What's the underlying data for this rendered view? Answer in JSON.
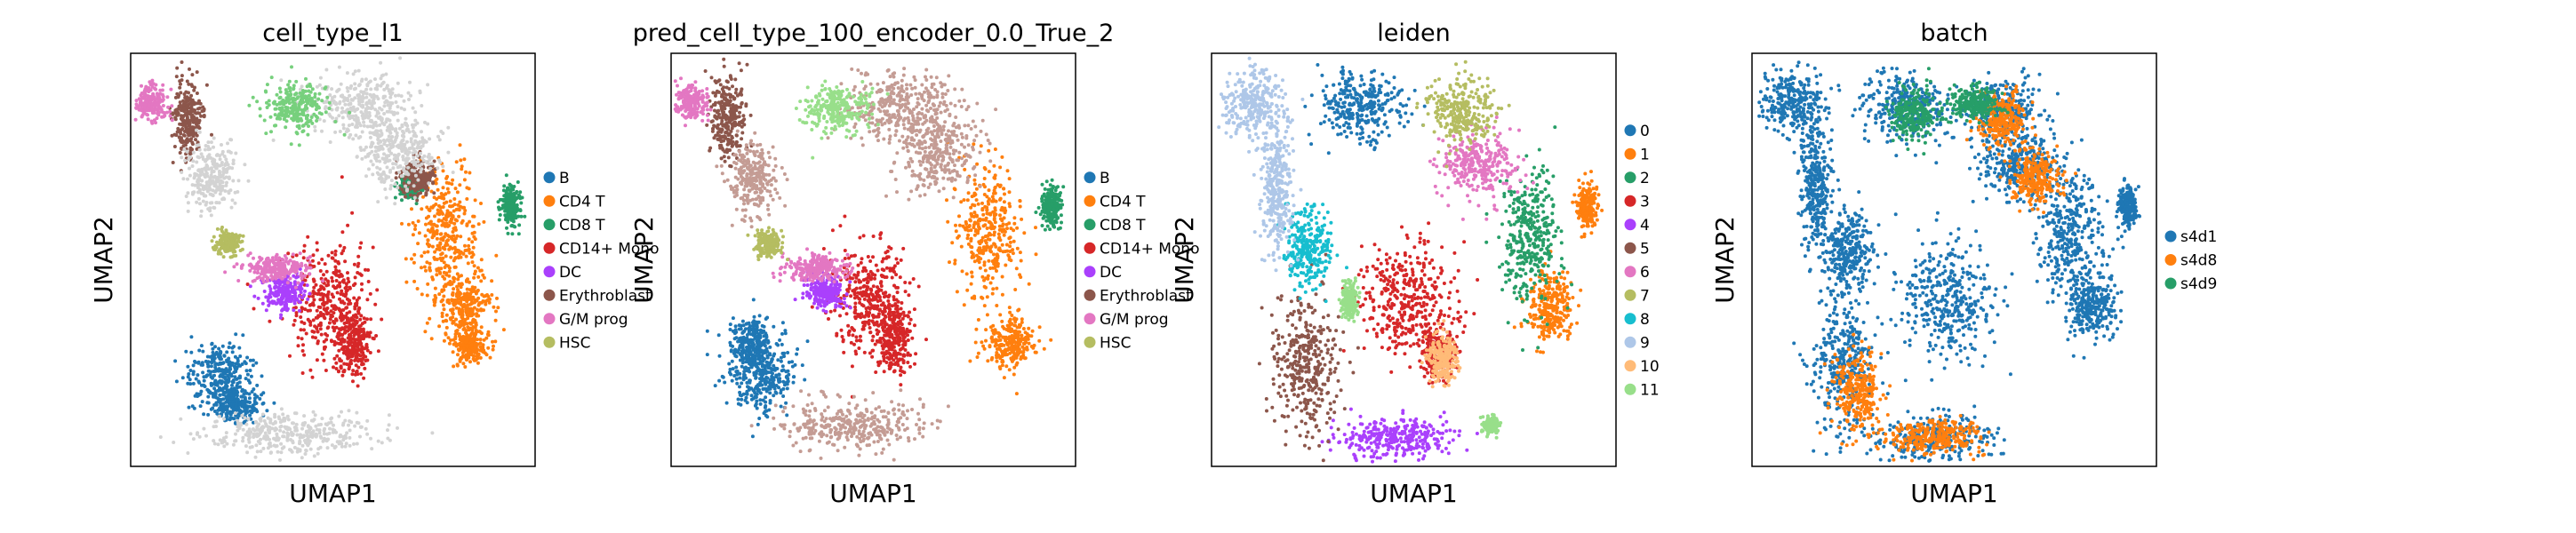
{
  "figure": {
    "panels": [
      {
        "title": "cell_type_l1",
        "xlabel": "UMAP1",
        "ylabel": "UMAP2",
        "legend": [
          {
            "label": "B",
            "color": "#1f77b4"
          },
          {
            "label": "CD4 T",
            "color": "#ff7f0e"
          },
          {
            "label": "CD8 T",
            "color": "#279e68"
          },
          {
            "label": "CD14+ Mono",
            "color": "#d62728"
          },
          {
            "label": "DC",
            "color": "#aa40fc"
          },
          {
            "label": "Erythroblast",
            "color": "#8c564b"
          },
          {
            "label": "G/M prog",
            "color": "#e377c2"
          },
          {
            "label": "HSC",
            "color": "#b5bd61"
          }
        ]
      },
      {
        "title": "pred_cell_type_100_encoder_0.0_True_2",
        "xlabel": "UMAP1",
        "ylabel": "UMAP2",
        "legend": [
          {
            "label": "B",
            "color": "#1f77b4"
          },
          {
            "label": "CD4 T",
            "color": "#ff7f0e"
          },
          {
            "label": "CD8 T",
            "color": "#279e68"
          },
          {
            "label": "CD14+ Mono",
            "color": "#d62728"
          },
          {
            "label": "DC",
            "color": "#aa40fc"
          },
          {
            "label": "Erythroblast",
            "color": "#8c564b"
          },
          {
            "label": "G/M prog",
            "color": "#e377c2"
          },
          {
            "label": "HSC",
            "color": "#b5bd61"
          }
        ]
      },
      {
        "title": "leiden",
        "xlabel": "UMAP1",
        "ylabel": "UMAP2",
        "legend": [
          {
            "label": "0",
            "color": "#1f77b4"
          },
          {
            "label": "1",
            "color": "#ff7f0e"
          },
          {
            "label": "2",
            "color": "#279e68"
          },
          {
            "label": "3",
            "color": "#d62728"
          },
          {
            "label": "4",
            "color": "#aa40fc"
          },
          {
            "label": "5",
            "color": "#8c564b"
          },
          {
            "label": "6",
            "color": "#e377c2"
          },
          {
            "label": "7",
            "color": "#b5bd61"
          },
          {
            "label": "8",
            "color": "#17becf"
          },
          {
            "label": "9",
            "color": "#aec7e8"
          },
          {
            "label": "10",
            "color": "#ffbb78"
          },
          {
            "label": "11",
            "color": "#98df8a"
          }
        ]
      },
      {
        "title": "batch",
        "xlabel": "UMAP1",
        "ylabel": "UMAP2",
        "legend": [
          {
            "label": "s4d1",
            "color": "#1f77b4"
          },
          {
            "label": "s4d8",
            "color": "#ff7f0e"
          },
          {
            "label": "s4d9",
            "color": "#279e68"
          }
        ]
      }
    ]
  },
  "chart_data": [
    {
      "type": "scatter",
      "title": "cell_type_l1",
      "xlabel": "UMAP1",
      "ylabel": "UMAP2",
      "grid": false,
      "legend_position": "right",
      "series": [
        {
          "name": "B",
          "color": "#1f77b4",
          "clusters": [
            [
              0.22,
              0.78,
              0.04,
              0.04
            ],
            [
              0.26,
              0.85,
              0.03,
              0.02
            ]
          ]
        },
        {
          "name": "CD4 T",
          "color": "#ff7f0e",
          "clusters": [
            [
              0.78,
              0.44,
              0.04,
              0.08
            ],
            [
              0.83,
              0.62,
              0.03,
              0.04
            ],
            [
              0.84,
              0.71,
              0.02,
              0.02
            ]
          ]
        },
        {
          "name": "CD8 T",
          "color": "#279e68",
          "clusters": [
            [
              0.94,
              0.37,
              0.012,
              0.025
            ],
            [
              0.69,
              0.32,
              0.015,
              0.015
            ]
          ]
        },
        {
          "name": "CD14+ Mono",
          "color": "#d62728",
          "clusters": [
            [
              0.49,
              0.6,
              0.05,
              0.07
            ],
            [
              0.55,
              0.7,
              0.02,
              0.04
            ]
          ]
        },
        {
          "name": "DC",
          "color": "#aa40fc",
          "clusters": [
            [
              0.38,
              0.58,
              0.025,
              0.02
            ]
          ]
        },
        {
          "name": "Erythroblast",
          "color": "#8c564b",
          "clusters": [
            [
              0.14,
              0.16,
              0.02,
              0.05
            ],
            [
              0.71,
              0.3,
              0.02,
              0.02
            ]
          ]
        },
        {
          "name": "G/M prog",
          "color": "#e377c2",
          "clusters": [
            [
              0.36,
              0.52,
              0.04,
              0.015
            ],
            [
              0.05,
              0.12,
              0.02,
              0.02
            ]
          ]
        },
        {
          "name": "HSC",
          "color": "#b5bd61",
          "clusters": [
            [
              0.24,
              0.46,
              0.015,
              0.015
            ]
          ]
        },
        {
          "name": "",
          "color": "#d3d3d3",
          "clusters": [
            [
              0.4,
              0.92,
              0.1,
              0.025
            ],
            [
              0.57,
              0.13,
              0.06,
              0.04
            ],
            [
              0.66,
              0.24,
              0.05,
              0.05
            ],
            [
              0.2,
              0.3,
              0.03,
              0.04
            ]
          ]
        },
        {
          "name": "",
          "color": "#77d07d",
          "clusters": [
            [
              0.41,
              0.13,
              0.04,
              0.03
            ]
          ]
        }
      ]
    },
    {
      "type": "scatter",
      "title": "pred_cell_type_100_encoder_0.0_True_2",
      "xlabel": "UMAP1",
      "ylabel": "UMAP2",
      "grid": false,
      "legend_position": "right",
      "series": [
        {
          "name": "B",
          "color": "#1f77b4",
          "clusters": [
            [
              0.22,
              0.78,
              0.04,
              0.04
            ],
            [
              0.2,
              0.7,
              0.03,
              0.03
            ]
          ]
        },
        {
          "name": "CD4 T",
          "color": "#ff7f0e",
          "clusters": [
            [
              0.78,
              0.44,
              0.04,
              0.08
            ],
            [
              0.84,
              0.7,
              0.03,
              0.03
            ]
          ]
        },
        {
          "name": "CD8 T",
          "color": "#279e68",
          "clusters": [
            [
              0.94,
              0.37,
              0.012,
              0.025
            ]
          ]
        },
        {
          "name": "CD14+ Mono",
          "color": "#d62728",
          "clusters": [
            [
              0.49,
              0.6,
              0.05,
              0.07
            ],
            [
              0.55,
              0.7,
              0.02,
              0.04
            ]
          ]
        },
        {
          "name": "DC",
          "color": "#aa40fc",
          "clusters": [
            [
              0.38,
              0.58,
              0.025,
              0.02
            ]
          ]
        },
        {
          "name": "Erythroblast",
          "color": "#8c564b",
          "clusters": [
            [
              0.14,
              0.16,
              0.02,
              0.05
            ]
          ]
        },
        {
          "name": "G/M prog",
          "color": "#e377c2",
          "clusters": [
            [
              0.36,
              0.52,
              0.04,
              0.015
            ],
            [
              0.05,
              0.12,
              0.02,
              0.02
            ]
          ]
        },
        {
          "name": "HSC",
          "color": "#b5bd61",
          "clusters": [
            [
              0.24,
              0.46,
              0.015,
              0.015
            ]
          ]
        },
        {
          "name": "",
          "color": "#c49c94",
          "clusters": [
            [
              0.57,
              0.13,
              0.07,
              0.04
            ],
            [
              0.66,
              0.24,
              0.05,
              0.05
            ],
            [
              0.45,
              0.9,
              0.09,
              0.03
            ],
            [
              0.2,
              0.3,
              0.03,
              0.04
            ]
          ]
        },
        {
          "name": "",
          "color": "#98df8a",
          "clusters": [
            [
              0.41,
              0.13,
              0.04,
              0.03
            ]
          ]
        }
      ]
    },
    {
      "type": "scatter",
      "title": "leiden",
      "xlabel": "UMAP1",
      "ylabel": "UMAP2",
      "grid": false,
      "legend_position": "right",
      "series": [
        {
          "name": "0",
          "color": "#1f77b4",
          "clusters": [
            [
              0.37,
              0.13,
              0.05,
              0.04
            ]
          ]
        },
        {
          "name": "1",
          "color": "#ff7f0e",
          "clusters": [
            [
              0.84,
              0.61,
              0.03,
              0.04
            ],
            [
              0.93,
              0.37,
              0.012,
              0.025
            ]
          ]
        },
        {
          "name": "2",
          "color": "#279e68",
          "clusters": [
            [
              0.79,
              0.44,
              0.035,
              0.08
            ]
          ]
        },
        {
          "name": "3",
          "color": "#d62728",
          "clusters": [
            [
              0.48,
              0.6,
              0.06,
              0.07
            ],
            [
              0.56,
              0.72,
              0.02,
              0.03
            ]
          ]
        },
        {
          "name": "4",
          "color": "#aa40fc",
          "clusters": [
            [
              0.45,
              0.93,
              0.07,
              0.025
            ]
          ]
        },
        {
          "name": "5",
          "color": "#8c564b",
          "clusters": [
            [
              0.23,
              0.76,
              0.04,
              0.08
            ]
          ]
        },
        {
          "name": "6",
          "color": "#e377c2",
          "clusters": [
            [
              0.66,
              0.27,
              0.05,
              0.04
            ]
          ]
        },
        {
          "name": "7",
          "color": "#b5bd61",
          "clusters": [
            [
              0.62,
              0.14,
              0.04,
              0.04
            ]
          ]
        },
        {
          "name": "8",
          "color": "#17becf",
          "clusters": [
            [
              0.24,
              0.48,
              0.03,
              0.05
            ]
          ]
        },
        {
          "name": "9",
          "color": "#aec7e8",
          "clusters": [
            [
              0.1,
              0.12,
              0.04,
              0.04
            ],
            [
              0.16,
              0.32,
              0.02,
              0.08
            ]
          ]
        },
        {
          "name": "10",
          "color": "#ffbb78",
          "clusters": [
            [
              0.57,
              0.74,
              0.02,
              0.03
            ]
          ]
        },
        {
          "name": "11",
          "color": "#98df8a",
          "clusters": [
            [
              0.34,
              0.6,
              0.01,
              0.02
            ],
            [
              0.69,
              0.9,
              0.01,
              0.01
            ]
          ]
        }
      ]
    },
    {
      "type": "scatter",
      "title": "batch",
      "xlabel": "UMAP1",
      "ylabel": "UMAP2",
      "grid": false,
      "legend_position": "right",
      "series": [
        {
          "name": "s4d1",
          "color": "#1f77b4",
          "clusters": [
            [
              0.38,
              0.13,
              0.06,
              0.04
            ],
            [
              0.62,
              0.14,
              0.05,
              0.04
            ],
            [
              0.66,
              0.27,
              0.05,
              0.04
            ],
            [
              0.79,
              0.44,
              0.04,
              0.08
            ],
            [
              0.84,
              0.61,
              0.03,
              0.04
            ],
            [
              0.48,
              0.6,
              0.06,
              0.07
            ],
            [
              0.23,
              0.76,
              0.04,
              0.08
            ],
            [
              0.24,
              0.48,
              0.03,
              0.05
            ],
            [
              0.1,
              0.12,
              0.04,
              0.04
            ],
            [
              0.16,
              0.32,
              0.02,
              0.08
            ],
            [
              0.45,
              0.93,
              0.07,
              0.025
            ],
            [
              0.93,
              0.37,
              0.012,
              0.025
            ]
          ]
        },
        {
          "name": "s4d8",
          "color": "#ff7f0e",
          "clusters": [
            [
              0.62,
              0.16,
              0.03,
              0.03
            ],
            [
              0.45,
              0.93,
              0.06,
              0.02
            ],
            [
              0.26,
              0.82,
              0.03,
              0.05
            ],
            [
              0.7,
              0.3,
              0.03,
              0.03
            ]
          ]
        },
        {
          "name": "s4d9",
          "color": "#279e68",
          "clusters": [
            [
              0.55,
              0.12,
              0.03,
              0.02
            ],
            [
              0.4,
              0.15,
              0.03,
              0.03
            ]
          ]
        }
      ]
    }
  ]
}
